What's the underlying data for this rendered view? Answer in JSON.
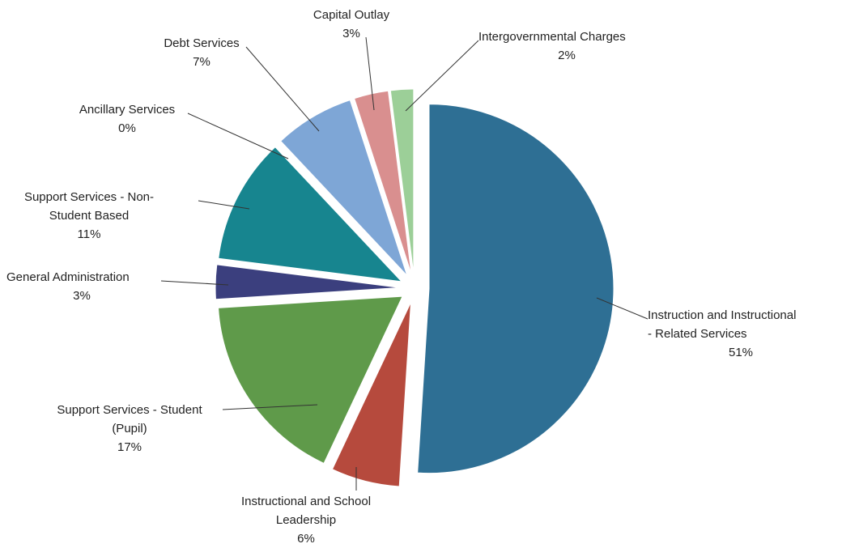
{
  "chart_data": {
    "type": "pie",
    "title": "",
    "legend": "none",
    "slices": [
      {
        "label_lines": [
          "Instruction and Instructional",
          "- Related Services"
        ],
        "pct_label": "51%",
        "value": 51,
        "color": "#2e6f94"
      },
      {
        "label_lines": [
          "Instructional and School",
          "Leadership"
        ],
        "pct_label": "6%",
        "value": 6,
        "color": "#b64a3d"
      },
      {
        "label_lines": [
          "Support Services - Student",
          "(Pupil)"
        ],
        "pct_label": "17%",
        "value": 17,
        "color": "#5f9a4a"
      },
      {
        "label_lines": [
          "General Administration"
        ],
        "pct_label": "3%",
        "value": 3,
        "color": "#3b3f7e"
      },
      {
        "label_lines": [
          "Support Services - Non-",
          "Student Based"
        ],
        "pct_label": "11%",
        "value": 11,
        "color": "#17858f"
      },
      {
        "label_lines": [
          "Ancillary Services"
        ],
        "pct_label": "0%",
        "value": 0,
        "color": "#6a8fc0"
      },
      {
        "label_lines": [
          "Debt Services"
        ],
        "pct_label": "7%",
        "value": 7,
        "color": "#7ea6d6"
      },
      {
        "label_lines": [
          "Capital Outlay"
        ],
        "pct_label": "3%",
        "value": 3,
        "color": "#d98f8f"
      },
      {
        "label_lines": [
          "Intergovernmental Charges"
        ],
        "pct_label": "2%",
        "value": 2,
        "color": "#9ccf98"
      }
    ]
  }
}
